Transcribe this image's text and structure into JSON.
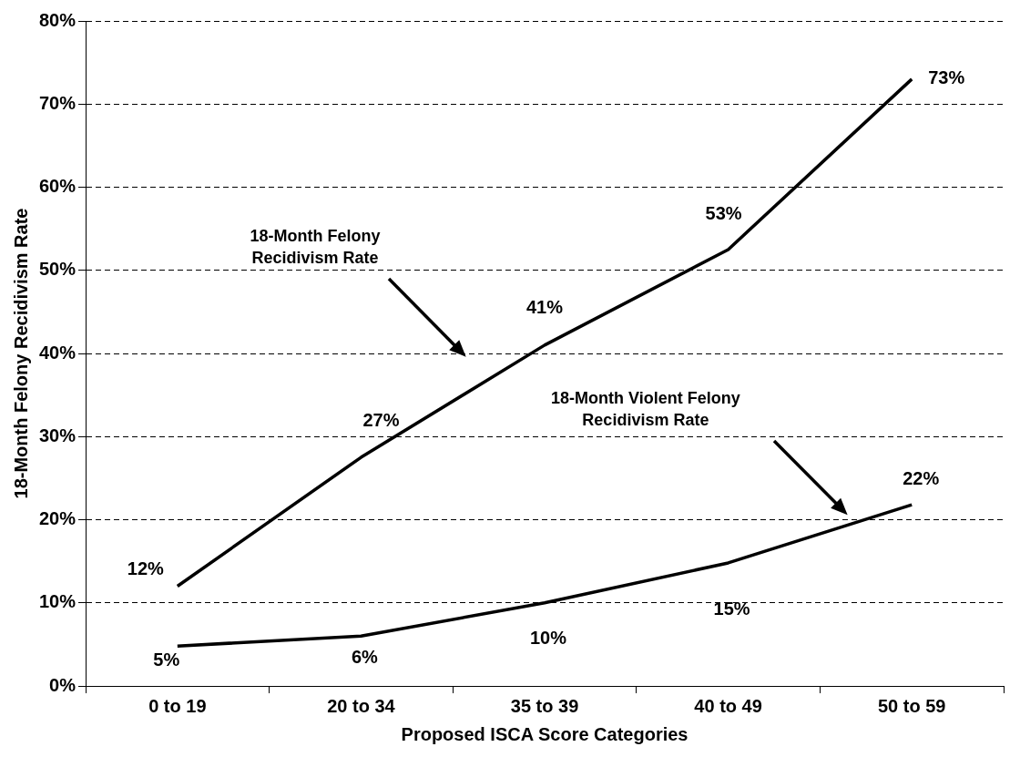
{
  "chart_data": {
    "type": "line",
    "xlabel": "Proposed ISCA Score Categories",
    "ylabel": "18-Month Felony Recidivism Rate",
    "categories": [
      "0 to 19",
      "20 to 34",
      "35 to 39",
      "40 to 49",
      "50 to 59"
    ],
    "series": [
      {
        "color": "#000000",
        "values": [
          12,
          27.5,
          41,
          52.5,
          73
        ],
        "value_labels": [
          "12%",
          "27%",
          "41%",
          "53%",
          "73%"
        ]
      },
      {
        "color": "#000000",
        "values": [
          4.8,
          6,
          10,
          14.8,
          21.8
        ],
        "value_labels": [
          "5%",
          "6%",
          "10%",
          "15%",
          "22%"
        ]
      }
    ],
    "ylim": [
      0,
      80
    ],
    "yticks": [
      {
        "value": 0,
        "label": "0%"
      },
      {
        "value": 10,
        "label": "10%"
      },
      {
        "value": 20,
        "label": "20%"
      },
      {
        "value": 30,
        "label": "30%"
      },
      {
        "value": 40,
        "label": "40%"
      },
      {
        "value": 50,
        "label": "50%"
      },
      {
        "value": 60,
        "label": "60%"
      },
      {
        "value": 70,
        "label": "70%"
      },
      {
        "value": 80,
        "label": "80%"
      }
    ],
    "annotations": [
      "18-Month Felony Recidivism Rate",
      "18-Month Violent Felony Recidivism Rate"
    ],
    "grid": "y",
    "legend": false,
    "marker": "none",
    "line_style": "solid"
  }
}
